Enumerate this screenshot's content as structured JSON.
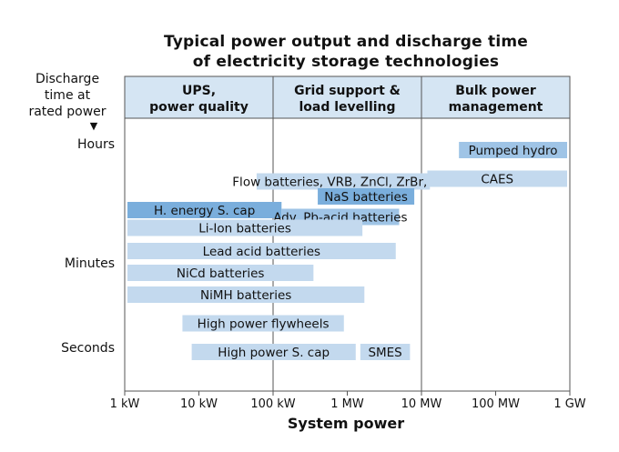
{
  "chart_data": {
    "type": "range-bar",
    "title_lines": [
      "Typical power output and discharge time",
      "of electricity storage technologies"
    ],
    "xlabel": "System power",
    "ylabel_lines": [
      "Discharge",
      "time at",
      "rated power",
      "▼"
    ],
    "x_scale": "log",
    "x_ticks": [
      {
        "value": 1,
        "label": "1 kW"
      },
      {
        "value": 10,
        "label": "10 kW"
      },
      {
        "value": 100,
        "label": "100 kW"
      },
      {
        "value": 1000,
        "label": "1 MW"
      },
      {
        "value": 10000,
        "label": "10 MW"
      },
      {
        "value": 100000,
        "label": "100 MW"
      },
      {
        "value": 1000000,
        "label": "1 GW"
      }
    ],
    "y_ticks": [
      "Hours",
      "Minutes",
      "Seconds"
    ],
    "categories": [
      {
        "label_lines": [
          "UPS,",
          "power quality"
        ],
        "x_from": 1,
        "x_to": 100
      },
      {
        "label_lines": [
          "Grid support &",
          "load levelling"
        ],
        "x_from": 100,
        "x_to": 10000
      },
      {
        "label_lines": [
          "Bulk power",
          "management"
        ],
        "x_from": 10000,
        "x_to": 1000000
      }
    ],
    "technologies": [
      {
        "name": "Pumped hydro",
        "power_from_kw": 32000,
        "power_to_kw": 1000000,
        "level": 0.5,
        "shade": "mid"
      },
      {
        "name": "Flow batteries, VRB, ZnCl, ZrBr, etc.",
        "power_from_kw": 60,
        "power_to_kw": 13000,
        "level": 1.65,
        "shade": "light"
      },
      {
        "name": "CAES",
        "power_from_kw": 12000,
        "power_to_kw": 1000000,
        "level": 1.55,
        "shade": "light"
      },
      {
        "name": "NaS batteries",
        "power_from_kw": 400,
        "power_to_kw": 8000,
        "level": 2.2,
        "shade": "dark"
      },
      {
        "name": "H. energy S. cap",
        "power_from_kw": 1,
        "power_to_kw": 130,
        "level": 2.7,
        "shade": "dark"
      },
      {
        "name": "Adv. Pb-acid batteries",
        "power_from_kw": 130,
        "power_to_kw": 5000,
        "level": 2.95,
        "shade": "mid"
      },
      {
        "name": "Li-Ion batteries",
        "power_from_kw": 1,
        "power_to_kw": 1600,
        "level": 3.35,
        "shade": "light"
      },
      {
        "name": "Lead acid batteries",
        "power_from_kw": 1,
        "power_to_kw": 4500,
        "level": 4.2,
        "shade": "light"
      },
      {
        "name": "NiCd batteries",
        "power_from_kw": 1,
        "power_to_kw": 350,
        "level": 5.0,
        "shade": "light"
      },
      {
        "name": "NiMH batteries",
        "power_from_kw": 1,
        "power_to_kw": 1700,
        "level": 5.8,
        "shade": "light"
      },
      {
        "name": "High power flywheels",
        "power_from_kw": 6,
        "power_to_kw": 900,
        "level": 6.85,
        "shade": "light"
      },
      {
        "name": "High power S. cap",
        "power_from_kw": 8,
        "power_to_kw": 1300,
        "level": 7.9,
        "shade": "light"
      },
      {
        "name": "SMES",
        "power_from_kw": 1500,
        "power_to_kw": 7000,
        "level": 7.9,
        "shade": "light"
      }
    ],
    "colors": {
      "light": "#c3d9ee",
      "mid": "#9fc4e6",
      "dark": "#7aaedc",
      "header": "#d5e5f3",
      "frame": "#555555"
    }
  }
}
